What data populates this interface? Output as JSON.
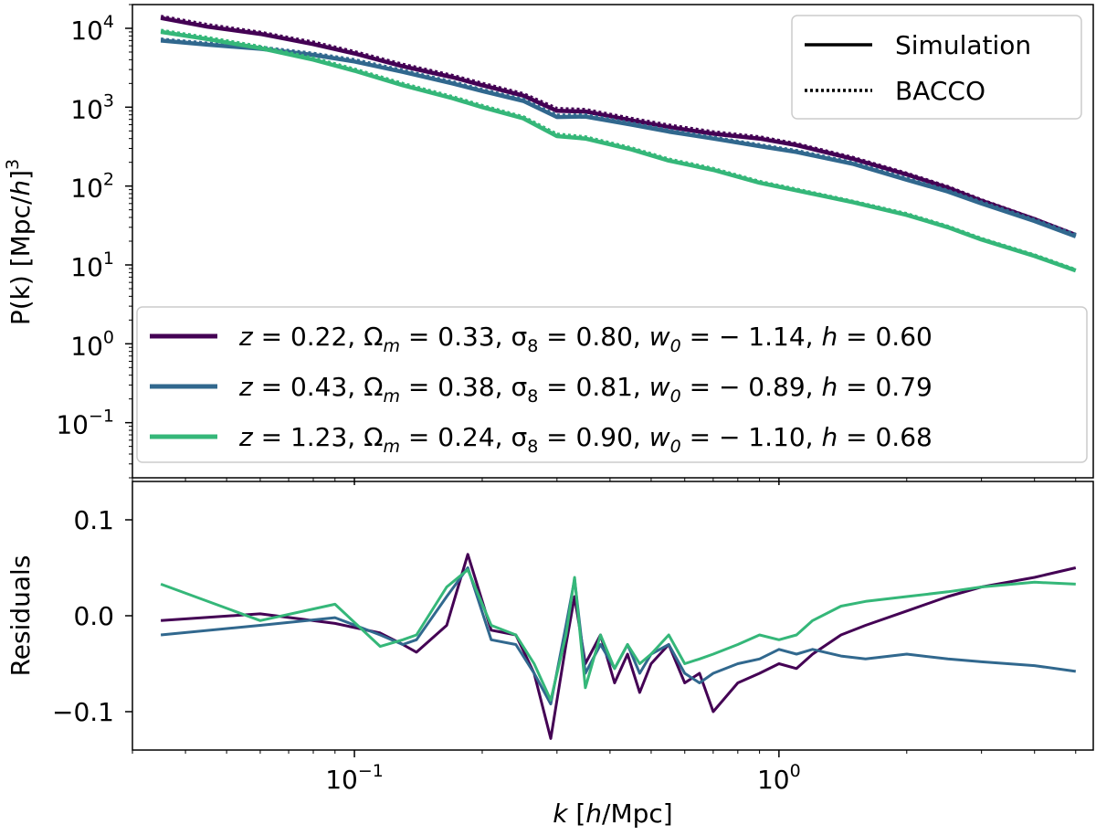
{
  "chart_data": [
    {
      "type": "line",
      "scale": "log-log",
      "xlim": [
        0.03,
        5.5
      ],
      "ylim": [
        0.02,
        20000
      ],
      "xlabel": "k [h/Mpc]",
      "ylabel": "P(k) [Mpc/h]³",
      "ylabel_prefix": "P(k) [Mpc/",
      "ylabel_suffix": "]",
      "ylabel_h": "h",
      "ylabel_exp": "3",
      "y_ticks": [
        {
          "value": 0.1,
          "base": "10",
          "exp": "−1"
        },
        {
          "value": 1,
          "base": "10",
          "exp": "0"
        },
        {
          "value": 10,
          "base": "10",
          "exp": "1"
        },
        {
          "value": 100,
          "base": "10",
          "exp": "2"
        },
        {
          "value": 1000,
          "base": "10",
          "exp": "3"
        },
        {
          "value": 10000,
          "base": "10",
          "exp": "4"
        }
      ],
      "line_styles": [
        {
          "name": "Simulation",
          "style": "solid"
        },
        {
          "name": "BACCO",
          "style": "dotted"
        }
      ],
      "series": [
        {
          "color": "#440154",
          "label_parts": [
            "z",
            " = 0.22, Ω",
            "m",
            " = 0.33, σ",
            "8",
            " = 0.80, ",
            "w",
            "0",
            " = − 1.14, ",
            "h",
            " = 0.60"
          ],
          "simulation": [
            [
              0.035,
              13500
            ],
            [
              0.045,
              10500
            ],
            [
              0.06,
              8500
            ],
            [
              0.08,
              6300
            ],
            [
              0.1,
              4800
            ],
            [
              0.13,
              3300
            ],
            [
              0.17,
              2400
            ],
            [
              0.2,
              1900
            ],
            [
              0.25,
              1400
            ],
            [
              0.3,
              900
            ],
            [
              0.35,
              880
            ],
            [
              0.45,
              680
            ],
            [
              0.55,
              560
            ],
            [
              0.7,
              460
            ],
            [
              0.9,
              400
            ],
            [
              1.1,
              330
            ],
            [
              1.5,
              220
            ],
            [
              2,
              140
            ],
            [
              2.5,
              95
            ],
            [
              3,
              65
            ],
            [
              4,
              38
            ],
            [
              5,
              24
            ]
          ],
          "bacco": [
            [
              0.035,
              14000
            ],
            [
              0.045,
              11000
            ],
            [
              0.06,
              8800
            ],
            [
              0.08,
              6600
            ],
            [
              0.1,
              5000
            ],
            [
              0.13,
              3450
            ],
            [
              0.17,
              2500
            ],
            [
              0.2,
              1980
            ],
            [
              0.25,
              1460
            ],
            [
              0.3,
              950
            ],
            [
              0.35,
              920
            ],
            [
              0.45,
              710
            ],
            [
              0.55,
              585
            ],
            [
              0.7,
              480
            ],
            [
              0.9,
              415
            ],
            [
              1.1,
              340
            ],
            [
              1.5,
              226
            ],
            [
              2,
              143
            ],
            [
              2.5,
              97
            ],
            [
              3,
              66
            ],
            [
              4,
              38
            ],
            [
              5,
              24
            ]
          ],
          "residuals": [
            [
              0.035,
              -0.005
            ],
            [
              0.06,
              0.002
            ],
            [
              0.09,
              -0.008
            ],
            [
              0.115,
              -0.018
            ],
            [
              0.13,
              -0.03
            ],
            [
              0.14,
              -0.038
            ],
            [
              0.165,
              -0.01
            ],
            [
              0.185,
              0.064
            ],
            [
              0.21,
              -0.015
            ],
            [
              0.24,
              -0.02
            ],
            [
              0.265,
              -0.06
            ],
            [
              0.29,
              -0.128
            ],
            [
              0.315,
              -0.03
            ],
            [
              0.33,
              0.02
            ],
            [
              0.35,
              -0.05
            ],
            [
              0.38,
              -0.02
            ],
            [
              0.41,
              -0.07
            ],
            [
              0.44,
              -0.04
            ],
            [
              0.47,
              -0.08
            ],
            [
              0.5,
              -0.05
            ],
            [
              0.55,
              -0.03
            ],
            [
              0.6,
              -0.07
            ],
            [
              0.65,
              -0.06
            ],
            [
              0.7,
              -0.1
            ],
            [
              0.8,
              -0.07
            ],
            [
              0.9,
              -0.06
            ],
            [
              1.0,
              -0.05
            ],
            [
              1.1,
              -0.055
            ],
            [
              1.2,
              -0.04
            ],
            [
              1.4,
              -0.02
            ],
            [
              1.6,
              -0.01
            ],
            [
              2.0,
              0.005
            ],
            [
              2.5,
              0.02
            ],
            [
              3.0,
              0.03
            ],
            [
              4.0,
              0.04
            ],
            [
              5.0,
              0.05
            ]
          ]
        },
        {
          "color": "#31688e",
          "label_parts": [
            "z",
            " = 0.43, Ω",
            "m",
            " = 0.38, σ",
            "8",
            " = 0.81, ",
            "w",
            "0",
            " = − 0.89, ",
            "h",
            " = 0.79"
          ],
          "simulation": [
            [
              0.035,
              7000
            ],
            [
              0.045,
              6200
            ],
            [
              0.06,
              5500
            ],
            [
              0.08,
              4600
            ],
            [
              0.1,
              3800
            ],
            [
              0.13,
              2800
            ],
            [
              0.17,
              2000
            ],
            [
              0.2,
              1600
            ],
            [
              0.25,
              1200
            ],
            [
              0.3,
              750
            ],
            [
              0.35,
              760
            ],
            [
              0.45,
              600
            ],
            [
              0.55,
              490
            ],
            [
              0.7,
              400
            ],
            [
              0.9,
              320
            ],
            [
              1.1,
              270
            ],
            [
              1.5,
              190
            ],
            [
              2,
              120
            ],
            [
              2.5,
              85
            ],
            [
              3,
              60
            ],
            [
              4,
              36
            ],
            [
              5,
              23
            ]
          ],
          "bacco": [
            [
              0.035,
              7200
            ],
            [
              0.045,
              6400
            ],
            [
              0.06,
              5700
            ],
            [
              0.08,
              4750
            ],
            [
              0.1,
              3950
            ],
            [
              0.13,
              2900
            ],
            [
              0.17,
              2070
            ],
            [
              0.2,
              1650
            ],
            [
              0.25,
              1240
            ],
            [
              0.3,
              780
            ],
            [
              0.35,
              790
            ],
            [
              0.45,
              620
            ],
            [
              0.55,
              505
            ],
            [
              0.7,
              410
            ],
            [
              0.9,
              330
            ],
            [
              1.1,
              278
            ],
            [
              1.5,
              195
            ],
            [
              2,
              124
            ],
            [
              2.5,
              87
            ],
            [
              3,
              62
            ],
            [
              4,
              37
            ],
            [
              5,
              24
            ]
          ],
          "residuals": [
            [
              0.035,
              -0.02
            ],
            [
              0.06,
              -0.01
            ],
            [
              0.09,
              -0.002
            ],
            [
              0.115,
              -0.02
            ],
            [
              0.13,
              -0.03
            ],
            [
              0.14,
              -0.025
            ],
            [
              0.165,
              0.02
            ],
            [
              0.185,
              0.05
            ],
            [
              0.21,
              -0.025
            ],
            [
              0.24,
              -0.03
            ],
            [
              0.265,
              -0.06
            ],
            [
              0.29,
              -0.092
            ],
            [
              0.315,
              -0.01
            ],
            [
              0.33,
              0.038
            ],
            [
              0.35,
              -0.06
            ],
            [
              0.38,
              -0.03
            ],
            [
              0.41,
              -0.055
            ],
            [
              0.44,
              -0.03
            ],
            [
              0.47,
              -0.06
            ],
            [
              0.5,
              -0.04
            ],
            [
              0.55,
              -0.03
            ],
            [
              0.6,
              -0.06
            ],
            [
              0.65,
              -0.07
            ],
            [
              0.7,
              -0.06
            ],
            [
              0.8,
              -0.05
            ],
            [
              0.9,
              -0.045
            ],
            [
              1.0,
              -0.035
            ],
            [
              1.1,
              -0.04
            ],
            [
              1.2,
              -0.035
            ],
            [
              1.4,
              -0.042
            ],
            [
              1.6,
              -0.045
            ],
            [
              2.0,
              -0.04
            ],
            [
              2.5,
              -0.045
            ],
            [
              3.0,
              -0.048
            ],
            [
              4.0,
              -0.052
            ],
            [
              5.0,
              -0.058
            ]
          ]
        },
        {
          "color": "#35b779",
          "label_parts": [
            "z",
            " = 1.23, Ω",
            "m",
            " = 0.24, σ",
            "8",
            " = 0.90, ",
            "w",
            "0",
            " = − 1.10, ",
            "h",
            " = 0.68"
          ],
          "simulation": [
            [
              0.035,
              9000
            ],
            [
              0.045,
              7300
            ],
            [
              0.06,
              5600
            ],
            [
              0.08,
              4000
            ],
            [
              0.1,
              2900
            ],
            [
              0.13,
              1900
            ],
            [
              0.17,
              1300
            ],
            [
              0.2,
              1000
            ],
            [
              0.25,
              720
            ],
            [
              0.3,
              430
            ],
            [
              0.35,
              400
            ],
            [
              0.45,
              290
            ],
            [
              0.55,
              210
            ],
            [
              0.7,
              160
            ],
            [
              0.9,
              110
            ],
            [
              1.1,
              88
            ],
            [
              1.5,
              62
            ],
            [
              2,
              43
            ],
            [
              2.5,
              30
            ],
            [
              3,
              21
            ],
            [
              4,
              13
            ],
            [
              5,
              8.5
            ]
          ],
          "bacco": [
            [
              0.035,
              9300
            ],
            [
              0.045,
              7550
            ],
            [
              0.06,
              5800
            ],
            [
              0.08,
              4150
            ],
            [
              0.1,
              3000
            ],
            [
              0.13,
              1970
            ],
            [
              0.17,
              1345
            ],
            [
              0.2,
              1035
            ],
            [
              0.25,
              745
            ],
            [
              0.3,
              450
            ],
            [
              0.35,
              415
            ],
            [
              0.45,
              300
            ],
            [
              0.55,
              217
            ],
            [
              0.7,
              165
            ],
            [
              0.9,
              113
            ],
            [
              1.1,
              90
            ],
            [
              1.5,
              63
            ],
            [
              2,
              44
            ],
            [
              2.5,
              30.5
            ],
            [
              3,
              21.3
            ],
            [
              4,
              13.2
            ],
            [
              5,
              8.6
            ]
          ],
          "residuals": [
            [
              0.035,
              0.033
            ],
            [
              0.06,
              -0.005
            ],
            [
              0.09,
              0.012
            ],
            [
              0.115,
              -0.032
            ],
            [
              0.13,
              -0.025
            ],
            [
              0.14,
              -0.02
            ],
            [
              0.165,
              0.03
            ],
            [
              0.185,
              0.048
            ],
            [
              0.21,
              -0.01
            ],
            [
              0.24,
              -0.02
            ],
            [
              0.265,
              -0.05
            ],
            [
              0.29,
              -0.088
            ],
            [
              0.315,
              -0.02
            ],
            [
              0.33,
              0.04
            ],
            [
              0.35,
              -0.075
            ],
            [
              0.38,
              -0.02
            ],
            [
              0.41,
              -0.055
            ],
            [
              0.44,
              -0.03
            ],
            [
              0.47,
              -0.05
            ],
            [
              0.5,
              -0.04
            ],
            [
              0.55,
              -0.02
            ],
            [
              0.6,
              -0.05
            ],
            [
              0.65,
              -0.045
            ],
            [
              0.7,
              -0.04
            ],
            [
              0.8,
              -0.03
            ],
            [
              0.9,
              -0.02
            ],
            [
              1.0,
              -0.025
            ],
            [
              1.1,
              -0.02
            ],
            [
              1.2,
              -0.005
            ],
            [
              1.4,
              0.01
            ],
            [
              1.6,
              0.015
            ],
            [
              2.0,
              0.02
            ],
            [
              2.5,
              0.025
            ],
            [
              3.0,
              0.03
            ],
            [
              4.0,
              0.035
            ],
            [
              5.0,
              0.033
            ]
          ]
        }
      ]
    },
    {
      "type": "line",
      "scale": "log-x",
      "xlim": [
        0.03,
        5.5
      ],
      "ylim": [
        -0.14,
        0.14
      ],
      "xlabel": "k [h/Mpc]",
      "xlabel_k": "k",
      "xlabel_rest_open": " [",
      "xlabel_h": "h",
      "xlabel_rest_close": "/Mpc]",
      "ylabel": "Residuals",
      "y_ticks": [
        {
          "value": 0.1,
          "label": "0.1"
        },
        {
          "value": 0.0,
          "label": "0.0"
        },
        {
          "value": -0.1,
          "label": "−0.1"
        }
      ],
      "x_ticks": [
        {
          "value": 0.1,
          "base": "10",
          "exp": "−1"
        },
        {
          "value": 1,
          "base": "10",
          "exp": "0"
        }
      ]
    }
  ]
}
